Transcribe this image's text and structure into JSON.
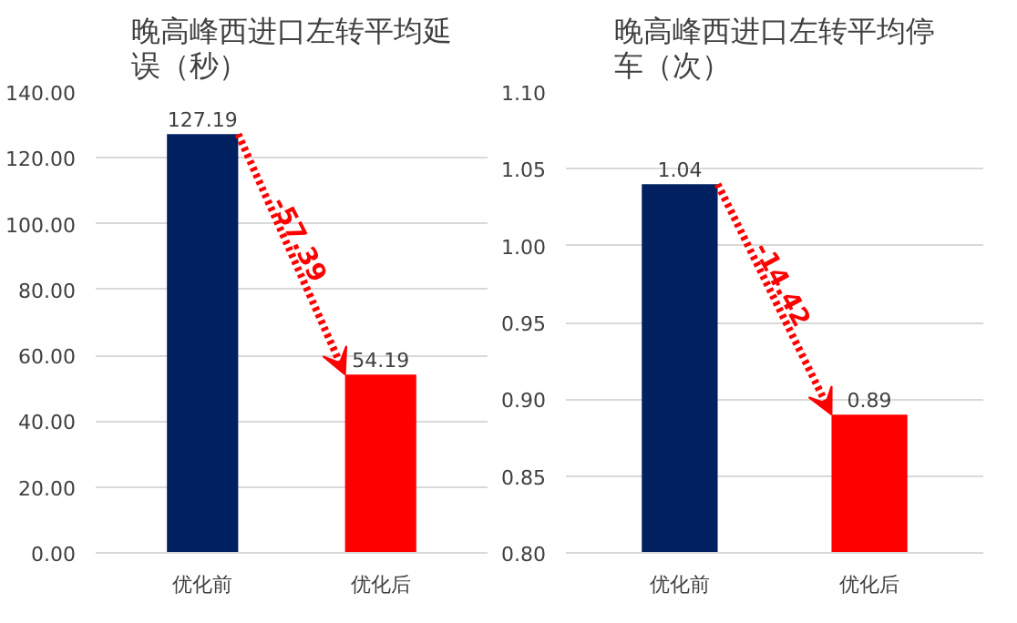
{
  "chart_data": [
    {
      "type": "bar",
      "title": "晚高峰西进口左转平均延误（秒）",
      "categories": [
        "优化前",
        "优化后"
      ],
      "series": [
        {
          "colors": [
            "#002060",
            "#ff0000"
          ],
          "values": [
            127.19,
            54.19
          ]
        }
      ],
      "ylim": [
        0,
        140
      ],
      "yticks": [
        {
          "value": 0,
          "label": "0.00"
        },
        {
          "value": 20,
          "label": "20.00"
        },
        {
          "value": 40,
          "label": "40.00"
        },
        {
          "value": 60,
          "label": "60.00"
        },
        {
          "value": 80,
          "label": "80.00"
        },
        {
          "value": 100,
          "label": "100.00"
        },
        {
          "value": 120,
          "label": "120.00"
        },
        {
          "value": 140,
          "label": "140.00"
        }
      ],
      "grid": "y",
      "data_labels": true,
      "annotations": [
        "-57.39"
      ]
    },
    {
      "type": "bar",
      "title": "晚高峰西进口左转平均停车（次）",
      "categories": [
        "优化前",
        "优化后"
      ],
      "series": [
        {
          "colors": [
            "#002060",
            "#ff0000"
          ],
          "values": [
            1.04,
            0.89
          ]
        }
      ],
      "ylim": [
        0.8,
        1.1
      ],
      "yticks": [
        {
          "value": 0.8,
          "label": "0.80"
        },
        {
          "value": 0.85,
          "label": "0.85"
        },
        {
          "value": 0.9,
          "label": "0.90"
        },
        {
          "value": 0.95,
          "label": "0.95"
        },
        {
          "value": 1.0,
          "label": "1.00"
        },
        {
          "value": 1.05,
          "label": "1.05"
        },
        {
          "value": 1.1,
          "label": "1.10"
        }
      ],
      "grid": "y",
      "data_labels": true,
      "annotations": [
        "-14.42"
      ]
    }
  ]
}
